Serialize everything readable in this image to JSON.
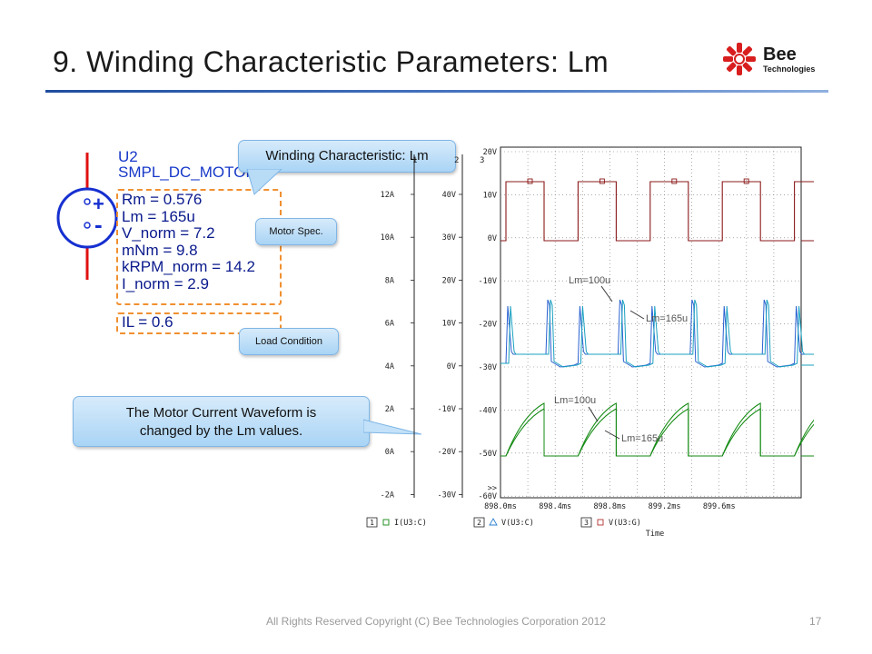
{
  "slide": {
    "title": "9. Winding Characteristic Parameters: Lm",
    "footer": "All Rights Reserved Copyright (C) Bee Technologies Corporation 2012",
    "page_number": "17",
    "logo_text_1": "Bee",
    "logo_text_2": "Technologies"
  },
  "schematic": {
    "ref": "U2",
    "model": "SMPL_DC_MOTOR",
    "params": [
      "Rm = 0.576",
      "Lm = 165u",
      "V_norm = 7.2",
      "mNm = 9.8",
      "kRPM_norm = 14.2",
      "I_norm = 2.9"
    ],
    "load": "IL = 0.6",
    "plus": "+",
    "minus": "-"
  },
  "callouts": {
    "winding": "Winding Characteristic: Lm",
    "motor_spec": "Motor Spec.",
    "load_condition": "Load Condition",
    "waveform_line1": "The Motor Current Waveform is",
    "waveform_line2": "changed by the Lm values."
  },
  "chart_data": {
    "type": "line",
    "xlabel": "Time",
    "x_ticks": [
      "898.0ms",
      "898.4ms",
      "898.8ms",
      "899.2ms",
      "899.6ms"
    ],
    "axis1_ticks": [
      "12A",
      "10A",
      "8A",
      "6A",
      "4A",
      "2A",
      "0A",
      "-2A"
    ],
    "axis2_ticks": [
      "40V",
      "30V",
      "20V",
      "10V",
      "0V",
      "-10V",
      "-20V",
      "-30V"
    ],
    "axis3_ticks": [
      "20V",
      "10V",
      "0V",
      "-10V",
      "-20V",
      "-30V",
      "-40V",
      "-50V",
      "-60V"
    ],
    "axis_ids": [
      "3",
      "1",
      "2"
    ],
    "overflow_marker": ">>",
    "annotations": [
      "Lm=100u",
      "Lm=165u",
      "Lm=100u",
      "Lm=165u"
    ],
    "legend": [
      {
        "id": "1",
        "label": "I(U3:C)",
        "marker": "square",
        "color": "#118811"
      },
      {
        "id": "2",
        "label": "V(U3:C)",
        "marker": "triangle",
        "color": "#2a7fd0"
      },
      {
        "id": "3",
        "label": "V(U3:G)",
        "marker": "square",
        "color": "#b03030"
      }
    ],
    "series_colors": {
      "gate": "#8b1a1a",
      "voltage_a": "#2a60d0",
      "voltage_b": "#1aa0c0",
      "current": "#138a13"
    }
  }
}
